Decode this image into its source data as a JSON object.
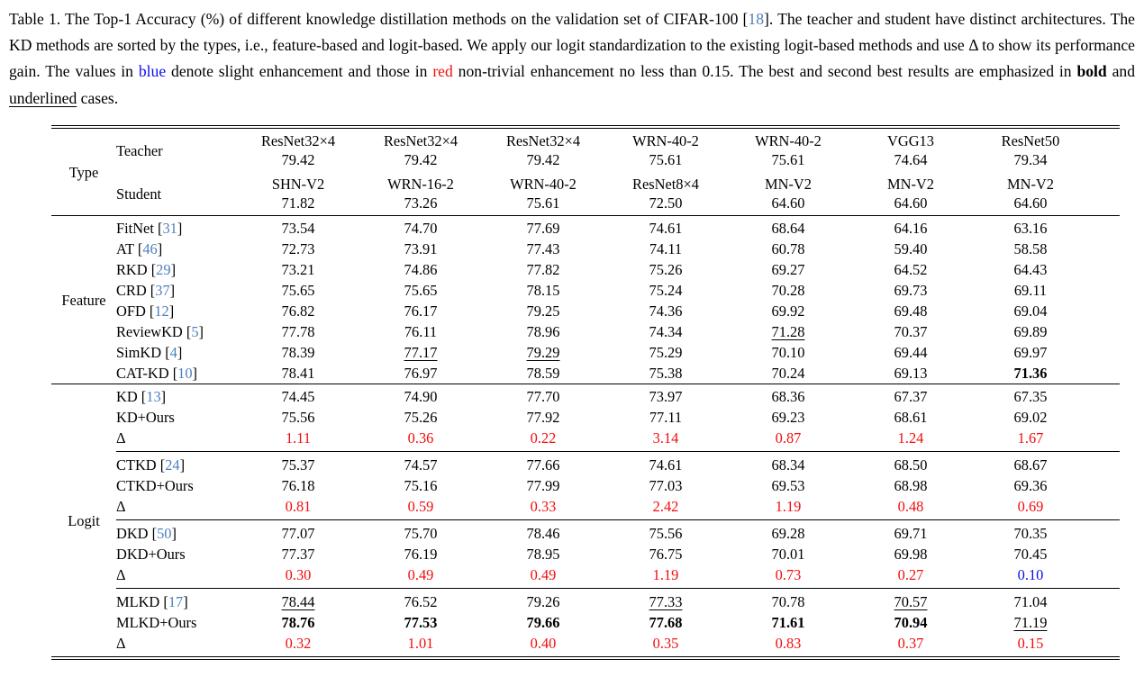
{
  "colors": {
    "citation_blue": "#4d7fbe",
    "gain_red": "#f20d0d",
    "gain_blue": "#0d0df2",
    "text": "#000000",
    "background": "#ffffff"
  },
  "caption": {
    "citation_brackets": [
      "[",
      "]"
    ],
    "segments": [
      {
        "text": "Table 1.  The Top-1 Accuracy (%) of different knowledge distillation methods on the validation set of CIFAR-100 ["
      },
      {
        "text": "18",
        "style": "cite"
      },
      {
        "text": "].  The teacher and student have distinct architectures. The KD methods are sorted by the types, i.e., feature-based and logit-based. We apply our logit standardization to the existing logit-based methods and use Δ to show its performance gain. The values in "
      },
      {
        "text": "blue",
        "style": "blue"
      },
      {
        "text": " denote slight enhancement and those in "
      },
      {
        "text": "red",
        "style": "red"
      },
      {
        "text": " non-trivial enhancement no less than 0.15. The best and second best results are emphasized in "
      },
      {
        "text": "bold",
        "style": "bold"
      },
      {
        "text": " and "
      },
      {
        "text": "underlined",
        "style": "underline"
      },
      {
        "text": " cases."
      }
    ]
  },
  "table": {
    "header": {
      "type_label": "Type",
      "teacher_label": "Teacher",
      "student_label": "Student",
      "columns": [
        {
          "teacher": "ResNet32×4",
          "teacher_acc": "79.42",
          "student": "SHN-V2",
          "student_acc": "71.82"
        },
        {
          "teacher": "ResNet32×4",
          "teacher_acc": "79.42",
          "student": "WRN-16-2",
          "student_acc": "73.26"
        },
        {
          "teacher": "ResNet32×4",
          "teacher_acc": "79.42",
          "student": "WRN-40-2",
          "student_acc": "75.61"
        },
        {
          "teacher": "WRN-40-2",
          "teacher_acc": "75.61",
          "student": "ResNet8×4",
          "student_acc": "72.50"
        },
        {
          "teacher": "WRN-40-2",
          "teacher_acc": "75.61",
          "student": "MN-V2",
          "student_acc": "64.60"
        },
        {
          "teacher": "VGG13",
          "teacher_acc": "74.64",
          "student": "MN-V2",
          "student_acc": "64.60"
        },
        {
          "teacher": "ResNet50",
          "teacher_acc": "79.34",
          "student": "MN-V2",
          "student_acc": "64.60"
        }
      ]
    },
    "sections": [
      {
        "label": "Feature",
        "groups": [
          {
            "rows": [
              {
                "method": "FitNet",
                "cite": "31",
                "values": [
                  {
                    "t": "73.54"
                  },
                  {
                    "t": "74.70"
                  },
                  {
                    "t": "77.69"
                  },
                  {
                    "t": "74.61"
                  },
                  {
                    "t": "68.64"
                  },
                  {
                    "t": "64.16"
                  },
                  {
                    "t": "63.16"
                  }
                ]
              },
              {
                "method": "AT",
                "cite": "46",
                "values": [
                  {
                    "t": "72.73"
                  },
                  {
                    "t": "73.91"
                  },
                  {
                    "t": "77.43"
                  },
                  {
                    "t": "74.11"
                  },
                  {
                    "t": "60.78"
                  },
                  {
                    "t": "59.40"
                  },
                  {
                    "t": "58.58"
                  }
                ]
              },
              {
                "method": "RKD",
                "cite": "29",
                "values": [
                  {
                    "t": "73.21"
                  },
                  {
                    "t": "74.86"
                  },
                  {
                    "t": "77.82"
                  },
                  {
                    "t": "75.26"
                  },
                  {
                    "t": "69.27"
                  },
                  {
                    "t": "64.52"
                  },
                  {
                    "t": "64.43"
                  }
                ]
              },
              {
                "method": "CRD",
                "cite": "37",
                "values": [
                  {
                    "t": "75.65"
                  },
                  {
                    "t": "75.65"
                  },
                  {
                    "t": "78.15"
                  },
                  {
                    "t": "75.24"
                  },
                  {
                    "t": "70.28"
                  },
                  {
                    "t": "69.73"
                  },
                  {
                    "t": "69.11"
                  }
                ]
              },
              {
                "method": "OFD",
                "cite": "12",
                "values": [
                  {
                    "t": "76.82"
                  },
                  {
                    "t": "76.17"
                  },
                  {
                    "t": "79.25"
                  },
                  {
                    "t": "74.36"
                  },
                  {
                    "t": "69.92"
                  },
                  {
                    "t": "69.48"
                  },
                  {
                    "t": "69.04"
                  }
                ]
              },
              {
                "method": "ReviewKD",
                "cite": "5",
                "values": [
                  {
                    "t": "77.78"
                  },
                  {
                    "t": "76.11"
                  },
                  {
                    "t": "78.96"
                  },
                  {
                    "t": "74.34"
                  },
                  {
                    "t": "71.28",
                    "s": "u"
                  },
                  {
                    "t": "70.37"
                  },
                  {
                    "t": "69.89"
                  }
                ]
              },
              {
                "method": "SimKD",
                "cite": "4",
                "values": [
                  {
                    "t": "78.39"
                  },
                  {
                    "t": "77.17",
                    "s": "u"
                  },
                  {
                    "t": "79.29",
                    "s": "u"
                  },
                  {
                    "t": "75.29"
                  },
                  {
                    "t": "70.10"
                  },
                  {
                    "t": "69.44"
                  },
                  {
                    "t": "69.97"
                  }
                ]
              },
              {
                "method": "CAT-KD",
                "cite": "10",
                "values": [
                  {
                    "t": "78.41"
                  },
                  {
                    "t": "76.97"
                  },
                  {
                    "t": "78.59"
                  },
                  {
                    "t": "75.38"
                  },
                  {
                    "t": "70.24"
                  },
                  {
                    "t": "69.13"
                  },
                  {
                    "t": "71.36",
                    "s": "b"
                  }
                ]
              }
            ]
          }
        ]
      },
      {
        "label": "Logit",
        "groups": [
          {
            "rows": [
              {
                "method": "KD",
                "cite": "13",
                "values": [
                  {
                    "t": "74.45"
                  },
                  {
                    "t": "74.90"
                  },
                  {
                    "t": "77.70"
                  },
                  {
                    "t": "73.97"
                  },
                  {
                    "t": "68.36"
                  },
                  {
                    "t": "67.37"
                  },
                  {
                    "t": "67.35"
                  }
                ]
              },
              {
                "method": "KD+Ours",
                "values": [
                  {
                    "t": "75.56"
                  },
                  {
                    "t": "75.26"
                  },
                  {
                    "t": "77.92"
                  },
                  {
                    "t": "77.11"
                  },
                  {
                    "t": "69.23"
                  },
                  {
                    "t": "68.61"
                  },
                  {
                    "t": "69.02"
                  }
                ]
              },
              {
                "method": "Δ",
                "delta": true,
                "values": [
                  {
                    "t": "1.11",
                    "s": "r"
                  },
                  {
                    "t": "0.36",
                    "s": "r"
                  },
                  {
                    "t": "0.22",
                    "s": "r"
                  },
                  {
                    "t": "3.14",
                    "s": "r"
                  },
                  {
                    "t": "0.87",
                    "s": "r"
                  },
                  {
                    "t": "1.24",
                    "s": "r"
                  },
                  {
                    "t": "1.67",
                    "s": "r"
                  }
                ]
              }
            ]
          },
          {
            "rows": [
              {
                "method": "CTKD",
                "cite": "24",
                "values": [
                  {
                    "t": "75.37"
                  },
                  {
                    "t": "74.57"
                  },
                  {
                    "t": "77.66"
                  },
                  {
                    "t": "74.61"
                  },
                  {
                    "t": "68.34"
                  },
                  {
                    "t": "68.50"
                  },
                  {
                    "t": "68.67"
                  }
                ]
              },
              {
                "method": "CTKD+Ours",
                "values": [
                  {
                    "t": "76.18"
                  },
                  {
                    "t": "75.16"
                  },
                  {
                    "t": "77.99"
                  },
                  {
                    "t": "77.03"
                  },
                  {
                    "t": "69.53"
                  },
                  {
                    "t": "68.98"
                  },
                  {
                    "t": "69.36"
                  }
                ]
              },
              {
                "method": "Δ",
                "delta": true,
                "values": [
                  {
                    "t": "0.81",
                    "s": "r"
                  },
                  {
                    "t": "0.59",
                    "s": "r"
                  },
                  {
                    "t": "0.33",
                    "s": "r"
                  },
                  {
                    "t": "2.42",
                    "s": "r"
                  },
                  {
                    "t": "1.19",
                    "s": "r"
                  },
                  {
                    "t": "0.48",
                    "s": "r"
                  },
                  {
                    "t": "0.69",
                    "s": "r"
                  }
                ]
              }
            ]
          },
          {
            "rows": [
              {
                "method": "DKD",
                "cite": "50",
                "values": [
                  {
                    "t": "77.07"
                  },
                  {
                    "t": "75.70"
                  },
                  {
                    "t": "78.46"
                  },
                  {
                    "t": "75.56"
                  },
                  {
                    "t": "69.28"
                  },
                  {
                    "t": "69.71"
                  },
                  {
                    "t": "70.35"
                  }
                ]
              },
              {
                "method": "DKD+Ours",
                "values": [
                  {
                    "t": "77.37"
                  },
                  {
                    "t": "76.19"
                  },
                  {
                    "t": "78.95"
                  },
                  {
                    "t": "76.75"
                  },
                  {
                    "t": "70.01"
                  },
                  {
                    "t": "69.98"
                  },
                  {
                    "t": "70.45"
                  }
                ]
              },
              {
                "method": "Δ",
                "delta": true,
                "values": [
                  {
                    "t": "0.30",
                    "s": "r"
                  },
                  {
                    "t": "0.49",
                    "s": "r"
                  },
                  {
                    "t": "0.49",
                    "s": "r"
                  },
                  {
                    "t": "1.19",
                    "s": "r"
                  },
                  {
                    "t": "0.73",
                    "s": "r"
                  },
                  {
                    "t": "0.27",
                    "s": "r"
                  },
                  {
                    "t": "0.10",
                    "s": "bl"
                  }
                ]
              }
            ]
          },
          {
            "rows": [
              {
                "method": "MLKD",
                "cite": "17",
                "values": [
                  {
                    "t": "78.44",
                    "s": "u"
                  },
                  {
                    "t": "76.52"
                  },
                  {
                    "t": "79.26"
                  },
                  {
                    "t": "77.33",
                    "s": "u"
                  },
                  {
                    "t": "70.78"
                  },
                  {
                    "t": "70.57",
                    "s": "u"
                  },
                  {
                    "t": "71.04"
                  }
                ]
              },
              {
                "method": "MLKD+Ours",
                "values": [
                  {
                    "t": "78.76",
                    "s": "b"
                  },
                  {
                    "t": "77.53",
                    "s": "b"
                  },
                  {
                    "t": "79.66",
                    "s": "b"
                  },
                  {
                    "t": "77.68",
                    "s": "b"
                  },
                  {
                    "t": "71.61",
                    "s": "b"
                  },
                  {
                    "t": "70.94",
                    "s": "b"
                  },
                  {
                    "t": "71.19",
                    "s": "u"
                  }
                ]
              },
              {
                "method": "Δ",
                "delta": true,
                "values": [
                  {
                    "t": "0.32",
                    "s": "r"
                  },
                  {
                    "t": "1.01",
                    "s": "r"
                  },
                  {
                    "t": "0.40",
                    "s": "r"
                  },
                  {
                    "t": "0.35",
                    "s": "r"
                  },
                  {
                    "t": "0.83",
                    "s": "r"
                  },
                  {
                    "t": "0.37",
                    "s": "r"
                  },
                  {
                    "t": "0.15",
                    "s": "r"
                  }
                ]
              }
            ]
          }
        ]
      }
    ]
  }
}
